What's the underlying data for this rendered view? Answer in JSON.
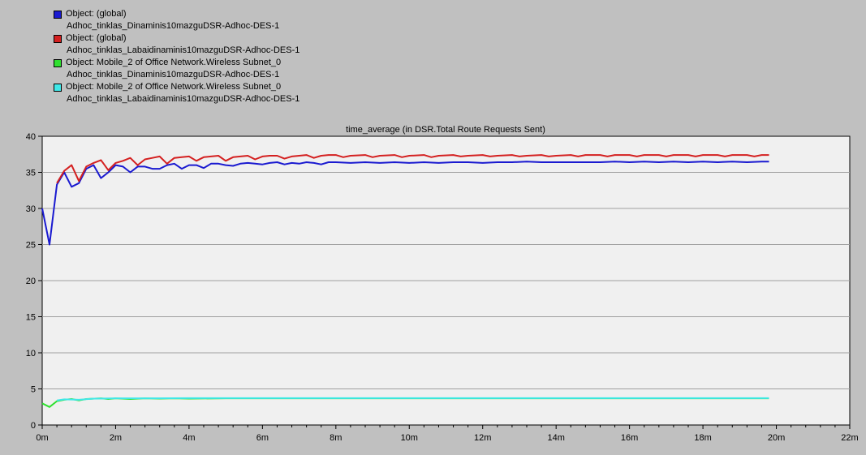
{
  "legend": [
    {
      "color": "#1a1ad0",
      "line1": "Object: (global)",
      "line2": "Adhoc_tinklas_Dinaminis10mazguDSR-Adhoc-DES-1"
    },
    {
      "color": "#d42020",
      "line1": "Object: (global)",
      "line2": "Adhoc_tinklas_Labaidinaminis10mazguDSR-Adhoc-DES-1"
    },
    {
      "color": "#30e030",
      "line1": "Object: Mobile_2 of Office Network.Wireless Subnet_0",
      "line2": "Adhoc_tinklas_Dinaminis10mazguDSR-Adhoc-DES-1"
    },
    {
      "color": "#40e8e8",
      "line1": "Object: Mobile_2 of Office Network.Wireless Subnet_0",
      "line2": "Adhoc_tinklas_Labaidinaminis10mazguDSR-Adhoc-DES-1"
    }
  ],
  "chart_data": {
    "type": "line",
    "title": "time_average (in DSR.Total Route Requests Sent)",
    "xlabel": "",
    "ylabel": "",
    "xlim": [
      0,
      22
    ],
    "ylim": [
      0,
      40
    ],
    "grid": true,
    "legend_position": "top-left",
    "x_ticks": [
      0,
      2,
      4,
      6,
      8,
      10,
      12,
      14,
      16,
      18,
      20,
      22
    ],
    "x_tick_labels": [
      "0m",
      "2m",
      "4m",
      "6m",
      "8m",
      "10m",
      "12m",
      "14m",
      "16m",
      "18m",
      "20m",
      "22m"
    ],
    "y_ticks": [
      0,
      5,
      10,
      15,
      20,
      25,
      30,
      35,
      40
    ],
    "y_tick_labels": [
      "0",
      "5",
      "10",
      "15",
      "20",
      "25",
      "30",
      "35",
      "40"
    ],
    "series": [
      {
        "name": "Object: (global) Adhoc_tinklas_Dinaminis10mazguDSR-Adhoc-DES-1",
        "color": "#1a1ad0",
        "points": [
          [
            0,
            30
          ],
          [
            0.2,
            25
          ],
          [
            0.4,
            33.3
          ],
          [
            0.6,
            35
          ],
          [
            0.8,
            33
          ],
          [
            1.0,
            33.5
          ],
          [
            1.2,
            35.5
          ],
          [
            1.4,
            36
          ],
          [
            1.6,
            34.2
          ],
          [
            1.8,
            35
          ],
          [
            2.0,
            36
          ],
          [
            2.2,
            35.8
          ],
          [
            2.4,
            35
          ],
          [
            2.6,
            35.8
          ],
          [
            2.8,
            35.8
          ],
          [
            3.0,
            35.5
          ],
          [
            3.2,
            35.5
          ],
          [
            3.4,
            36
          ],
          [
            3.6,
            36.2
          ],
          [
            3.8,
            35.5
          ],
          [
            4.0,
            36
          ],
          [
            4.2,
            36
          ],
          [
            4.4,
            35.6
          ],
          [
            4.6,
            36.2
          ],
          [
            4.8,
            36.2
          ],
          [
            5.0,
            36
          ],
          [
            5.2,
            35.9
          ],
          [
            5.4,
            36.2
          ],
          [
            5.6,
            36.3
          ],
          [
            5.8,
            36.2
          ],
          [
            6.0,
            36.1
          ],
          [
            6.2,
            36.3
          ],
          [
            6.4,
            36.4
          ],
          [
            6.6,
            36.1
          ],
          [
            6.8,
            36.3
          ],
          [
            7.0,
            36.2
          ],
          [
            7.2,
            36.4
          ],
          [
            7.4,
            36.3
          ],
          [
            7.6,
            36.1
          ],
          [
            7.8,
            36.4
          ],
          [
            8.0,
            36.4
          ],
          [
            8.4,
            36.3
          ],
          [
            8.8,
            36.4
          ],
          [
            9.2,
            36.3
          ],
          [
            9.6,
            36.4
          ],
          [
            10.0,
            36.3
          ],
          [
            10.4,
            36.4
          ],
          [
            10.8,
            36.3
          ],
          [
            11.2,
            36.4
          ],
          [
            11.6,
            36.4
          ],
          [
            12.0,
            36.3
          ],
          [
            12.4,
            36.4
          ],
          [
            12.8,
            36.4
          ],
          [
            13.2,
            36.5
          ],
          [
            13.6,
            36.4
          ],
          [
            14.0,
            36.4
          ],
          [
            14.4,
            36.4
          ],
          [
            14.8,
            36.4
          ],
          [
            15.2,
            36.4
          ],
          [
            15.6,
            36.5
          ],
          [
            16.0,
            36.4
          ],
          [
            16.4,
            36.5
          ],
          [
            16.8,
            36.4
          ],
          [
            17.2,
            36.5
          ],
          [
            17.6,
            36.4
          ],
          [
            18.0,
            36.5
          ],
          [
            18.4,
            36.4
          ],
          [
            18.8,
            36.5
          ],
          [
            19.2,
            36.4
          ],
          [
            19.6,
            36.5
          ],
          [
            19.8,
            36.5
          ]
        ]
      },
      {
        "name": "Object: (global) Adhoc_tinklas_Labaidinaminis10mazguDSR-Adhoc-DES-1",
        "color": "#d42020",
        "points": [
          [
            0.4,
            33.5
          ],
          [
            0.6,
            35.2
          ],
          [
            0.8,
            36
          ],
          [
            1.0,
            33.8
          ],
          [
            1.2,
            35.8
          ],
          [
            1.4,
            36.3
          ],
          [
            1.6,
            36.7
          ],
          [
            1.8,
            35.3
          ],
          [
            2.0,
            36.3
          ],
          [
            2.2,
            36.6
          ],
          [
            2.4,
            37
          ],
          [
            2.6,
            36
          ],
          [
            2.8,
            36.8
          ],
          [
            3.0,
            37
          ],
          [
            3.2,
            37.2
          ],
          [
            3.4,
            36.2
          ],
          [
            3.6,
            37
          ],
          [
            3.8,
            37.1
          ],
          [
            4.0,
            37.2
          ],
          [
            4.2,
            36.6
          ],
          [
            4.4,
            37.1
          ],
          [
            4.6,
            37.2
          ],
          [
            4.8,
            37.3
          ],
          [
            5.0,
            36.6
          ],
          [
            5.2,
            37.1
          ],
          [
            5.4,
            37.2
          ],
          [
            5.6,
            37.3
          ],
          [
            5.8,
            36.8
          ],
          [
            6.0,
            37.2
          ],
          [
            6.2,
            37.3
          ],
          [
            6.4,
            37.3
          ],
          [
            6.6,
            36.9
          ],
          [
            6.8,
            37.2
          ],
          [
            7.0,
            37.3
          ],
          [
            7.2,
            37.4
          ],
          [
            7.4,
            37
          ],
          [
            7.6,
            37.3
          ],
          [
            7.8,
            37.4
          ],
          [
            8.0,
            37.4
          ],
          [
            8.2,
            37.1
          ],
          [
            8.4,
            37.3
          ],
          [
            8.8,
            37.4
          ],
          [
            9.0,
            37.1
          ],
          [
            9.2,
            37.3
          ],
          [
            9.6,
            37.4
          ],
          [
            9.8,
            37.1
          ],
          [
            10.0,
            37.3
          ],
          [
            10.4,
            37.4
          ],
          [
            10.6,
            37.1
          ],
          [
            10.8,
            37.3
          ],
          [
            11.2,
            37.4
          ],
          [
            11.4,
            37.2
          ],
          [
            11.6,
            37.3
          ],
          [
            12.0,
            37.4
          ],
          [
            12.2,
            37.2
          ],
          [
            12.4,
            37.3
          ],
          [
            12.8,
            37.4
          ],
          [
            13.0,
            37.2
          ],
          [
            13.2,
            37.3
          ],
          [
            13.6,
            37.4
          ],
          [
            13.8,
            37.2
          ],
          [
            14.0,
            37.3
          ],
          [
            14.4,
            37.4
          ],
          [
            14.6,
            37.2
          ],
          [
            14.8,
            37.4
          ],
          [
            15.2,
            37.4
          ],
          [
            15.4,
            37.2
          ],
          [
            15.6,
            37.4
          ],
          [
            16.0,
            37.4
          ],
          [
            16.2,
            37.2
          ],
          [
            16.4,
            37.4
          ],
          [
            16.8,
            37.4
          ],
          [
            17.0,
            37.2
          ],
          [
            17.2,
            37.4
          ],
          [
            17.6,
            37.4
          ],
          [
            17.8,
            37.2
          ],
          [
            18.0,
            37.4
          ],
          [
            18.4,
            37.4
          ],
          [
            18.6,
            37.2
          ],
          [
            18.8,
            37.4
          ],
          [
            19.2,
            37.4
          ],
          [
            19.4,
            37.2
          ],
          [
            19.6,
            37.4
          ],
          [
            19.8,
            37.4
          ]
        ]
      },
      {
        "name": "Object: Mobile_2 of Office Network.Wireless Subnet_0 Adhoc_tinklas_Dinaminis10mazguDSR-Adhoc-DES-1",
        "color": "#30e030",
        "points": [
          [
            0,
            3
          ],
          [
            0.2,
            2.5
          ],
          [
            0.4,
            3.3
          ],
          [
            0.6,
            3.5
          ],
          [
            0.8,
            3.6
          ],
          [
            1.0,
            3.4
          ],
          [
            1.2,
            3.6
          ],
          [
            1.6,
            3.7
          ],
          [
            1.8,
            3.6
          ],
          [
            2.0,
            3.7
          ],
          [
            2.4,
            3.6
          ],
          [
            2.8,
            3.7
          ],
          [
            3.2,
            3.65
          ],
          [
            3.6,
            3.7
          ],
          [
            4.0,
            3.65
          ],
          [
            5.0,
            3.7
          ],
          [
            6.0,
            3.7
          ],
          [
            8.0,
            3.7
          ],
          [
            10.0,
            3.7
          ],
          [
            12.0,
            3.7
          ],
          [
            14.0,
            3.7
          ],
          [
            16.0,
            3.7
          ],
          [
            18.0,
            3.7
          ],
          [
            19.8,
            3.7
          ]
        ]
      },
      {
        "name": "Object: Mobile_2 of Office Network.Wireless Subnet_0 Adhoc_tinklas_Labaidinaminis10mazguDSR-Adhoc-DES-1",
        "color": "#40e8e8",
        "points": [
          [
            0.4,
            3.4
          ],
          [
            0.6,
            3.55
          ],
          [
            1.0,
            3.5
          ],
          [
            1.4,
            3.65
          ],
          [
            2.0,
            3.7
          ],
          [
            3.0,
            3.7
          ],
          [
            4.0,
            3.72
          ],
          [
            6.0,
            3.72
          ],
          [
            8.0,
            3.72
          ],
          [
            10.0,
            3.72
          ],
          [
            12.0,
            3.72
          ],
          [
            14.0,
            3.72
          ],
          [
            16.0,
            3.72
          ],
          [
            18.0,
            3.72
          ],
          [
            19.8,
            3.72
          ]
        ]
      }
    ]
  }
}
